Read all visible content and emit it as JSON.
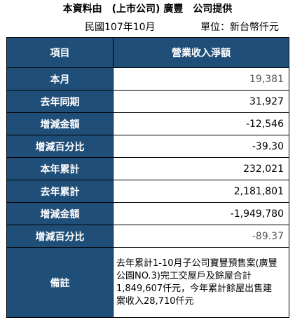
{
  "header": {
    "title": "本資料由　(上市公司) 廣豐　公司提供",
    "period": "民國107年10月",
    "unit": "單位：新台幣仟元"
  },
  "table": {
    "col_item": "項目",
    "col_revenue": "營業收入淨額",
    "rows": [
      {
        "label": "本月",
        "value": "19,381"
      },
      {
        "label": "去年同期",
        "value": "31,927"
      },
      {
        "label": "增減金額",
        "value": "-12,546"
      },
      {
        "label": "增減百分比",
        "value": "-39.30"
      },
      {
        "label": "本年累計",
        "value": "232,021"
      },
      {
        "label": "去年累計",
        "value": "2,181,801"
      },
      {
        "label": "增減金額",
        "value": "-1,949,780"
      },
      {
        "label": "增減百分比",
        "value": "-89.37"
      }
    ],
    "note_label": "備註",
    "note_lines": [
      "去年累計1-10月子公司寶豐預售案(廣豐",
      "公園NO.3)完工交屋戶及餘屋合計",
      "1,849,607仟元，今年累計餘屋出售建",
      "案收入28,710仟元"
    ]
  }
}
